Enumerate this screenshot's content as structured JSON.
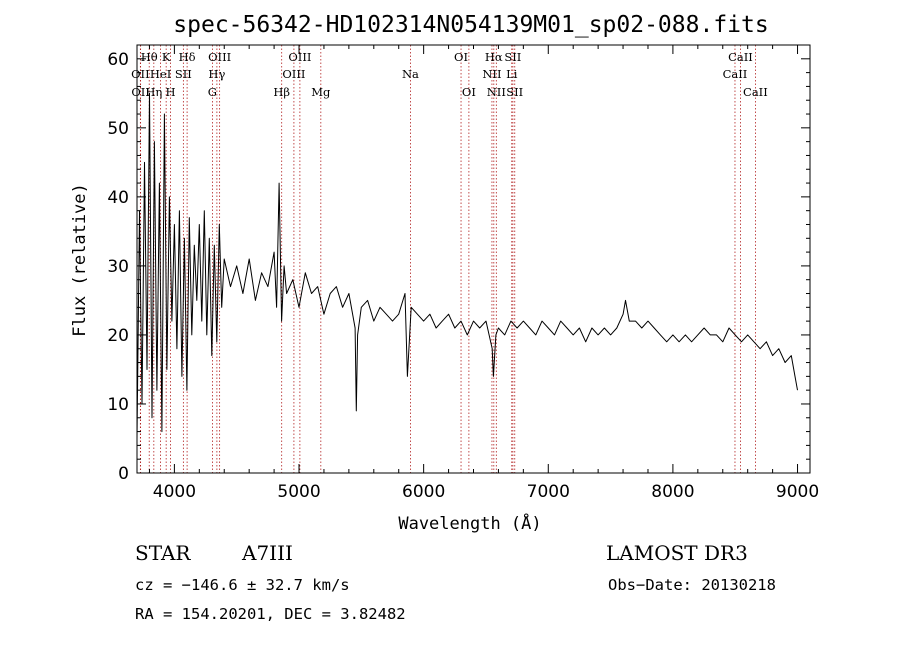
{
  "chart_data": {
    "type": "line",
    "title": "spec-56342-HD102314N054139M01_sp02-088.fits",
    "xlabel": "Wavelength (Å)",
    "ylabel": "Flux (relative)",
    "xlim": [
      3700,
      9100
    ],
    "ylim": [
      0,
      62
    ],
    "x_ticks": [
      4000,
      5000,
      6000,
      7000,
      8000,
      9000
    ],
    "x_tick_labels": [
      "4000",
      "5000",
      "6000",
      "7000",
      "8000",
      "9000"
    ],
    "y_ticks": [
      0,
      10,
      20,
      30,
      40,
      50,
      60
    ],
    "y_tick_labels": [
      "0",
      "10",
      "20",
      "30",
      "40",
      "50",
      "60"
    ],
    "series": [
      {
        "name": "flux",
        "points": [
          [
            3700,
            5
          ],
          [
            3720,
            38
          ],
          [
            3740,
            10
          ],
          [
            3760,
            45
          ],
          [
            3780,
            15
          ],
          [
            3800,
            55
          ],
          [
            3820,
            8
          ],
          [
            3840,
            48
          ],
          [
            3860,
            12
          ],
          [
            3880,
            42
          ],
          [
            3900,
            6
          ],
          [
            3920,
            52
          ],
          [
            3940,
            15
          ],
          [
            3960,
            40
          ],
          [
            3980,
            22
          ],
          [
            4000,
            36
          ],
          [
            4020,
            18
          ],
          [
            4040,
            38
          ],
          [
            4060,
            14
          ],
          [
            4080,
            34
          ],
          [
            4100,
            12
          ],
          [
            4120,
            37
          ],
          [
            4140,
            20
          ],
          [
            4160,
            33
          ],
          [
            4180,
            25
          ],
          [
            4200,
            36
          ],
          [
            4220,
            22
          ],
          [
            4240,
            38
          ],
          [
            4260,
            20
          ],
          [
            4280,
            34
          ],
          [
            4300,
            17
          ],
          [
            4320,
            33
          ],
          [
            4340,
            19
          ],
          [
            4360,
            36
          ],
          [
            4380,
            24
          ],
          [
            4400,
            31
          ],
          [
            4450,
            27
          ],
          [
            4500,
            30
          ],
          [
            4550,
            26
          ],
          [
            4600,
            31
          ],
          [
            4650,
            25
          ],
          [
            4700,
            29
          ],
          [
            4750,
            27
          ],
          [
            4800,
            32
          ],
          [
            4820,
            24
          ],
          [
            4840,
            42
          ],
          [
            4860,
            22
          ],
          [
            4880,
            30
          ],
          [
            4900,
            26
          ],
          [
            4950,
            28
          ],
          [
            5000,
            24
          ],
          [
            5050,
            29
          ],
          [
            5100,
            26
          ],
          [
            5150,
            27
          ],
          [
            5200,
            23
          ],
          [
            5250,
            26
          ],
          [
            5300,
            27
          ],
          [
            5350,
            24
          ],
          [
            5400,
            26
          ],
          [
            5450,
            21
          ],
          [
            5460,
            9
          ],
          [
            5470,
            20
          ],
          [
            5500,
            24
          ],
          [
            5550,
            25
          ],
          [
            5600,
            22
          ],
          [
            5650,
            24
          ],
          [
            5700,
            23
          ],
          [
            5750,
            22
          ],
          [
            5800,
            23
          ],
          [
            5850,
            26
          ],
          [
            5870,
            14
          ],
          [
            5900,
            24
          ],
          [
            5950,
            23
          ],
          [
            6000,
            22
          ],
          [
            6050,
            23
          ],
          [
            6100,
            21
          ],
          [
            6150,
            22
          ],
          [
            6200,
            23
          ],
          [
            6250,
            21
          ],
          [
            6300,
            22
          ],
          [
            6350,
            20
          ],
          [
            6400,
            22
          ],
          [
            6450,
            21
          ],
          [
            6500,
            22
          ],
          [
            6550,
            18
          ],
          [
            6560,
            14
          ],
          [
            6580,
            20
          ],
          [
            6600,
            21
          ],
          [
            6650,
            20
          ],
          [
            6700,
            22
          ],
          [
            6750,
            21
          ],
          [
            6800,
            22
          ],
          [
            6850,
            21
          ],
          [
            6900,
            20
          ],
          [
            6950,
            22
          ],
          [
            7000,
            21
          ],
          [
            7050,
            20
          ],
          [
            7100,
            22
          ],
          [
            7150,
            21
          ],
          [
            7200,
            20
          ],
          [
            7250,
            21
          ],
          [
            7300,
            19
          ],
          [
            7350,
            21
          ],
          [
            7400,
            20
          ],
          [
            7450,
            21
          ],
          [
            7500,
            20
          ],
          [
            7550,
            21
          ],
          [
            7600,
            23
          ],
          [
            7620,
            25
          ],
          [
            7650,
            22
          ],
          [
            7700,
            22
          ],
          [
            7750,
            21
          ],
          [
            7800,
            22
          ],
          [
            7850,
            21
          ],
          [
            7900,
            20
          ],
          [
            7950,
            19
          ],
          [
            8000,
            20
          ],
          [
            8050,
            19
          ],
          [
            8100,
            20
          ],
          [
            8150,
            19
          ],
          [
            8200,
            20
          ],
          [
            8250,
            21
          ],
          [
            8300,
            20
          ],
          [
            8350,
            20
          ],
          [
            8400,
            19
          ],
          [
            8450,
            21
          ],
          [
            8500,
            20
          ],
          [
            8550,
            19
          ],
          [
            8600,
            20
          ],
          [
            8650,
            19
          ],
          [
            8700,
            18
          ],
          [
            8750,
            19
          ],
          [
            8800,
            17
          ],
          [
            8850,
            18
          ],
          [
            8900,
            16
          ],
          [
            8950,
            17
          ],
          [
            8980,
            14
          ],
          [
            9000,
            12
          ]
        ]
      }
    ],
    "line_markers": [
      {
        "label": "OII",
        "x": 3727,
        "row": 1
      },
      {
        "label": "OII",
        "x": 3729,
        "row": 2
      },
      {
        "label": "Hθ",
        "x": 3798,
        "row": 0
      },
      {
        "label": "Hη",
        "x": 3835,
        "row": 2
      },
      {
        "label": "HeI",
        "x": 3889,
        "row": 1
      },
      {
        "label": "K",
        "x": 3934,
        "row": 0
      },
      {
        "label": "H",
        "x": 3969,
        "row": 2
      },
      {
        "label": "SII",
        "x": 4072,
        "row": 1
      },
      {
        "label": "Hδ",
        "x": 4102,
        "row": 0
      },
      {
        "label": "G",
        "x": 4305,
        "row": 2
      },
      {
        "label": "Hγ",
        "x": 4341,
        "row": 1
      },
      {
        "label": "OIII",
        "x": 4363,
        "row": 0
      },
      {
        "label": "Hβ",
        "x": 4861,
        "row": 2
      },
      {
        "label": "OIII",
        "x": 4959,
        "row": 1
      },
      {
        "label": "OIII",
        "x": 5007,
        "row": 0
      },
      {
        "label": "Mg",
        "x": 5175,
        "row": 2
      },
      {
        "label": "Na",
        "x": 5894,
        "row": 1
      },
      {
        "label": "OI",
        "x": 6300,
        "row": 0
      },
      {
        "label": "OI",
        "x": 6363,
        "row": 2
      },
      {
        "label": "NII",
        "x": 6548,
        "row": 1
      },
      {
        "label": "Hα",
        "x": 6563,
        "row": 0
      },
      {
        "label": "NII",
        "x": 6583,
        "row": 2
      },
      {
        "label": "Li",
        "x": 6707,
        "row": 1
      },
      {
        "label": "SII",
        "x": 6716,
        "row": 0
      },
      {
        "label": "SII",
        "x": 6731,
        "row": 2
      },
      {
        "label": "CaII",
        "x": 8498,
        "row": 1
      },
      {
        "label": "CaII",
        "x": 8542,
        "row": 0
      },
      {
        "label": "CaII",
        "x": 8662,
        "row": 2
      }
    ],
    "colors": {
      "spectrum": "#000000",
      "markers": "#b22222",
      "axes": "#000000"
    }
  },
  "info": {
    "object_class": "STAR",
    "subclass": "A7III",
    "survey": "LAMOST DR3",
    "cz": "cz = −146.6 ± 32.7 km/s",
    "obs_date": "Obs−Date: 20130218",
    "coords": "RA = 154.20201, DEC =   3.82482"
  }
}
